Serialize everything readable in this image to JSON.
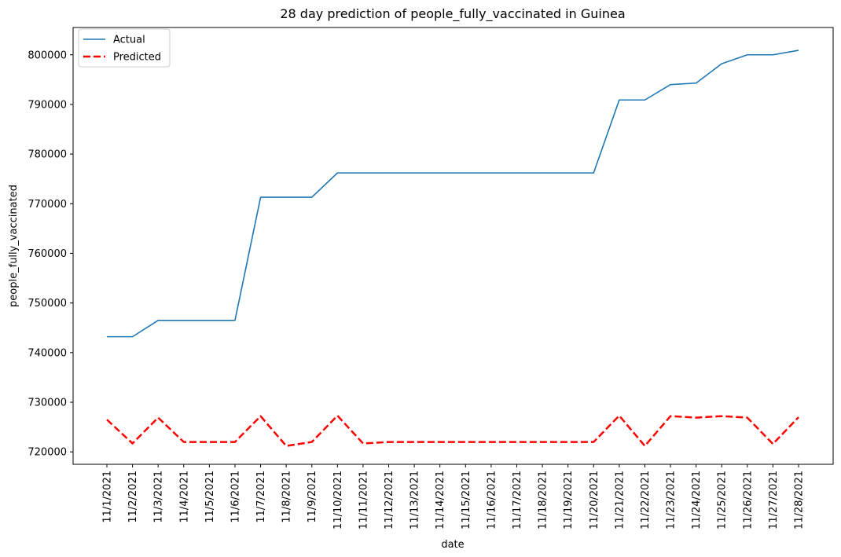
{
  "chart_data": {
    "type": "line",
    "title": "28 day prediction of people_fully_vaccinated in Guinea",
    "xlabel": "date",
    "ylabel": "people_fully_vaccinated",
    "categories": [
      "11/1/2021",
      "11/2/2021",
      "11/3/2021",
      "11/4/2021",
      "11/5/2021",
      "11/6/2021",
      "11/7/2021",
      "11/8/2021",
      "11/9/2021",
      "11/10/2021",
      "11/11/2021",
      "11/12/2021",
      "11/13/2021",
      "11/14/2021",
      "11/15/2021",
      "11/16/2021",
      "11/17/2021",
      "11/18/2021",
      "11/19/2021",
      "11/20/2021",
      "11/21/2021",
      "11/22/2021",
      "11/23/2021",
      "11/24/2021",
      "11/25/2021",
      "11/26/2021",
      "11/27/2021",
      "11/28/2021"
    ],
    "ylim": [
      717500,
      805500
    ],
    "yticks": [
      720000,
      730000,
      740000,
      750000,
      760000,
      770000,
      780000,
      790000,
      800000
    ],
    "grid": false,
    "legend": "upper-left",
    "series": [
      {
        "name": "Actual",
        "color": "#1f77b4",
        "style": "solid",
        "values": [
          743200,
          743200,
          746500,
          746500,
          746500,
          746500,
          771300,
          771300,
          771300,
          776200,
          776200,
          776200,
          776200,
          776200,
          776200,
          776200,
          776200,
          776200,
          776200,
          776200,
          790900,
          790900,
          794000,
          794300,
          798200,
          800000,
          800000,
          800900
        ]
      },
      {
        "name": "Predicted",
        "color": "#ff0000",
        "style": "dashed",
        "values": [
          726500,
          721700,
          726900,
          722000,
          722000,
          722000,
          727200,
          721200,
          722000,
          727300,
          721700,
          722000,
          722000,
          722000,
          722000,
          722000,
          722000,
          722000,
          722000,
          722000,
          727300,
          721200,
          727200,
          726900,
          727200,
          726900,
          721600,
          727000
        ]
      }
    ]
  }
}
